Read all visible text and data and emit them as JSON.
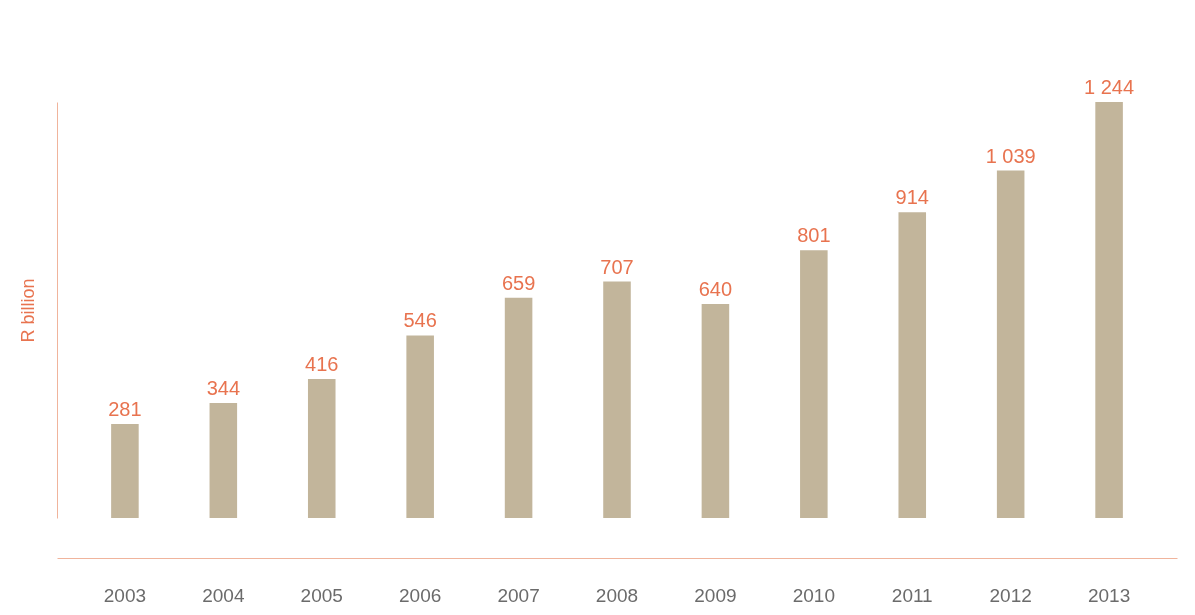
{
  "chart_data": {
    "type": "bar",
    "ylabel": "R billion",
    "categories": [
      "2003",
      "2004",
      "2005",
      "2006",
      "2007",
      "2008",
      "2009",
      "2010",
      "2011",
      "2012",
      "2013"
    ],
    "values": [
      281,
      344,
      416,
      546,
      659,
      707,
      640,
      801,
      914,
      1039,
      1244
    ],
    "value_labels": [
      "281",
      "344",
      "416",
      "546",
      "659",
      "707",
      "640",
      "801",
      "914",
      "1 039",
      "1 244"
    ],
    "color": "#c2b59b",
    "grid": false,
    "tick_labels": "x"
  }
}
